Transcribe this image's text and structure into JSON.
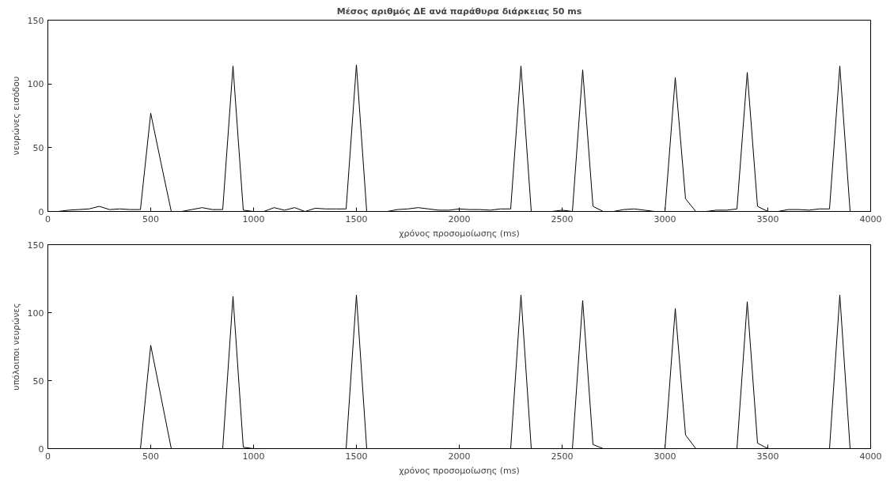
{
  "chart_data": [
    {
      "type": "line",
      "title": "Μέσος αριθμός ΔΕ ανά παράθυρα διάρκειας 50 ms",
      "xlabel": "χρόνος προσομοίωσης (ms)",
      "ylabel": "νευρώνες εισόδου",
      "xlim": [
        0,
        4000
      ],
      "ylim": [
        0,
        150
      ],
      "xticks": [
        0,
        500,
        1000,
        1500,
        2000,
        2500,
        3000,
        3500,
        4000
      ],
      "yticks": [
        0,
        50,
        100,
        150
      ],
      "x": [
        0,
        50,
        100,
        150,
        200,
        250,
        300,
        350,
        400,
        450,
        500,
        550,
        600,
        650,
        700,
        750,
        800,
        850,
        900,
        950,
        1000,
        1050,
        1100,
        1150,
        1200,
        1250,
        1300,
        1350,
        1400,
        1450,
        1500,
        1550,
        1600,
        1650,
        1700,
        1750,
        1800,
        1850,
        1900,
        1950,
        2000,
        2050,
        2100,
        2150,
        2200,
        2250,
        2300,
        2350,
        2400,
        2450,
        2500,
        2550,
        2600,
        2650,
        2700,
        2750,
        2800,
        2850,
        2900,
        2950,
        3000,
        3050,
        3100,
        3150,
        3200,
        3250,
        3300,
        3350,
        3400,
        3450,
        3500,
        3550,
        3600,
        3650,
        3700,
        3750,
        3800,
        3850,
        3900,
        3950
      ],
      "series": [
        {
          "color": "#000000",
          "values": [
            0,
            0,
            1,
            1.5,
            2,
            4,
            1.5,
            2,
            1.5,
            1.5,
            77,
            38,
            0,
            0,
            1.5,
            3,
            1.5,
            1.5,
            114,
            1,
            0,
            0,
            3,
            1,
            3,
            0,
            2.5,
            2,
            2,
            2,
            115,
            0,
            0,
            0,
            1.5,
            2,
            3,
            2,
            1,
            1,
            2,
            1.5,
            1.5,
            1,
            2,
            2,
            114,
            0,
            0,
            0,
            1,
            0,
            111,
            4,
            0,
            0,
            1.5,
            2,
            1,
            0,
            0,
            105,
            10,
            0,
            0,
            1,
            1,
            2,
            109,
            4,
            0,
            0,
            1.5,
            1.5,
            1,
            2,
            2,
            114,
            0,
            0
          ]
        }
      ]
    },
    {
      "type": "line",
      "xlabel": "χρόνος προσομοίωσης (ms)",
      "ylabel": "υπόλοιποι νευρώνες",
      "xlim": [
        0,
        4000
      ],
      "ylim": [
        0,
        150
      ],
      "xticks": [
        0,
        500,
        1000,
        1500,
        2000,
        2500,
        3000,
        3500,
        4000
      ],
      "yticks": [
        0,
        50,
        100,
        150
      ],
      "x": [
        0,
        50,
        100,
        150,
        200,
        250,
        300,
        350,
        400,
        450,
        500,
        550,
        600,
        650,
        700,
        750,
        800,
        850,
        900,
        950,
        1000,
        1050,
        1100,
        1150,
        1200,
        1250,
        1300,
        1350,
        1400,
        1450,
        1500,
        1550,
        1600,
        1650,
        1700,
        1750,
        1800,
        1850,
        1900,
        1950,
        2000,
        2050,
        2100,
        2150,
        2200,
        2250,
        2300,
        2350,
        2400,
        2450,
        2500,
        2550,
        2600,
        2650,
        2700,
        2750,
        2800,
        2850,
        2900,
        2950,
        3000,
        3050,
        3100,
        3150,
        3200,
        3250,
        3300,
        3350,
        3400,
        3450,
        3500,
        3550,
        3600,
        3650,
        3700,
        3750,
        3800,
        3850,
        3900,
        3950
      ],
      "series": [
        {
          "color": "#000000",
          "values": [
            0,
            0,
            0,
            0,
            0,
            0,
            0,
            0,
            0,
            0,
            76,
            38,
            0,
            0,
            0,
            0,
            0,
            0,
            112,
            1,
            0,
            0,
            0,
            0,
            0,
            0,
            0,
            0,
            0,
            0,
            113,
            0,
            0,
            0,
            0,
            0,
            0,
            0,
            0,
            0,
            0,
            0,
            0,
            0,
            0,
            0,
            113,
            0,
            0,
            0,
            0,
            0,
            109,
            3,
            0,
            0,
            0,
            0,
            0,
            0,
            0,
            103,
            10,
            0,
            0,
            0,
            0,
            0,
            108,
            4,
            0,
            0,
            0,
            0,
            0,
            0,
            0,
            113,
            0,
            0
          ]
        }
      ]
    }
  ]
}
